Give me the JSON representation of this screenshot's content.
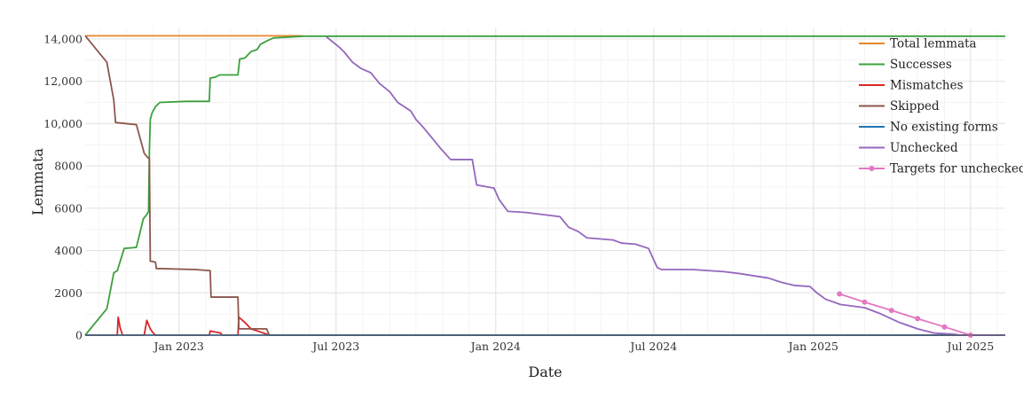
{
  "chart_data": {
    "type": "line",
    "title": "",
    "xlabel": "Date",
    "ylabel": "Lemmata",
    "x_axis": {
      "type": "date",
      "range": [
        "2022-09-15",
        "2025-08-10"
      ],
      "ticks": [
        {
          "date": "2023-01-01",
          "label": "Jan 2023"
        },
        {
          "date": "2023-07-01",
          "label": "Jul 2023"
        },
        {
          "date": "2024-01-01",
          "label": "Jan 2024"
        },
        {
          "date": "2024-07-01",
          "label": "Jul 2024"
        },
        {
          "date": "2025-01-01",
          "label": "Jan 2025"
        },
        {
          "date": "2025-07-01",
          "label": "Jul 2025"
        }
      ]
    },
    "y_axis": {
      "range": [
        0,
        14500
      ],
      "ticks": [
        {
          "value": 0,
          "label": "0"
        },
        {
          "value": 2000,
          "label": "2000"
        },
        {
          "value": 4000,
          "label": "4000"
        },
        {
          "value": 6000,
          "label": "6000"
        },
        {
          "value": 8000,
          "label": "8000"
        },
        {
          "value": 10000,
          "label": "10,000"
        },
        {
          "value": 12000,
          "label": "12,000"
        },
        {
          "value": 14000,
          "label": "14,000"
        }
      ]
    },
    "grid": true,
    "legend_position": "top-right",
    "series": [
      {
        "name": "Total lemmata",
        "color": "#e8862a",
        "markers": false,
        "points": [
          [
            "2022-09-15",
            14150
          ],
          [
            "2023-05-20",
            14150
          ],
          [
            "2023-05-25",
            14130
          ]
        ]
      },
      {
        "name": "Successes",
        "color": "#3ca03c",
        "markers": false,
        "points": [
          [
            "2022-09-15",
            0
          ],
          [
            "2022-10-10",
            1250
          ],
          [
            "2022-10-18",
            2950
          ],
          [
            "2022-10-22",
            3050
          ],
          [
            "2022-10-30",
            4100
          ],
          [
            "2022-11-13",
            4150
          ],
          [
            "2022-11-21",
            5500
          ],
          [
            "2022-11-25",
            5700
          ],
          [
            "2022-11-27",
            5850
          ],
          [
            "2022-11-28",
            8700
          ],
          [
            "2022-11-29",
            10200
          ],
          [
            "2022-12-01",
            10500
          ],
          [
            "2022-12-05",
            10800
          ],
          [
            "2022-12-10",
            11000
          ],
          [
            "2023-01-10",
            11050
          ],
          [
            "2023-02-05",
            11050
          ],
          [
            "2023-02-06",
            12150
          ],
          [
            "2023-02-12",
            12200
          ],
          [
            "2023-02-17",
            12300
          ],
          [
            "2023-03-10",
            12300
          ],
          [
            "2023-03-12",
            13050
          ],
          [
            "2023-03-18",
            13100
          ],
          [
            "2023-03-25",
            13400
          ],
          [
            "2023-04-01",
            13500
          ],
          [
            "2023-04-05",
            13750
          ],
          [
            "2023-04-12",
            13900
          ],
          [
            "2023-04-20",
            14050
          ],
          [
            "2023-05-25",
            14130
          ],
          [
            "2025-07-01",
            14130
          ],
          [
            "2025-08-10",
            14130
          ]
        ]
      },
      {
        "name": "Mismatches",
        "color": "#d62728",
        "markers": false,
        "points": [
          [
            "2022-09-15",
            0
          ],
          [
            "2022-10-22",
            0
          ],
          [
            "2022-10-23",
            850
          ],
          [
            "2022-10-25",
            400
          ],
          [
            "2022-10-28",
            0
          ],
          [
            "2022-11-22",
            0
          ],
          [
            "2022-11-25",
            700
          ],
          [
            "2022-11-29",
            300
          ],
          [
            "2022-12-02",
            120
          ],
          [
            "2022-12-05",
            0
          ],
          [
            "2023-02-05",
            0
          ],
          [
            "2023-02-06",
            200
          ],
          [
            "2023-02-18",
            100
          ],
          [
            "2023-02-20",
            0
          ],
          [
            "2023-03-10",
            0
          ],
          [
            "2023-03-11",
            850
          ],
          [
            "2023-03-18",
            600
          ],
          [
            "2023-03-25",
            300
          ],
          [
            "2023-04-05",
            150
          ],
          [
            "2023-04-15",
            0
          ],
          [
            "2025-08-10",
            0
          ]
        ]
      },
      {
        "name": "Skipped",
        "color": "#8c564b",
        "markers": false,
        "points": [
          [
            "2022-09-15",
            14150
          ],
          [
            "2022-10-10",
            12900
          ],
          [
            "2022-10-18",
            11100
          ],
          [
            "2022-10-20",
            10050
          ],
          [
            "2022-11-13",
            9950
          ],
          [
            "2022-11-22",
            8600
          ],
          [
            "2022-11-26",
            8400
          ],
          [
            "2022-11-28",
            8350
          ],
          [
            "2022-11-29",
            3500
          ],
          [
            "2022-12-05",
            3450
          ],
          [
            "2022-12-06",
            3150
          ],
          [
            "2023-01-20",
            3100
          ],
          [
            "2023-02-06",
            3050
          ],
          [
            "2023-02-07",
            1800
          ],
          [
            "2023-03-10",
            1800
          ],
          [
            "2023-03-11",
            300
          ],
          [
            "2023-04-12",
            300
          ],
          [
            "2023-04-15",
            0
          ],
          [
            "2025-08-10",
            0
          ]
        ]
      },
      {
        "name": "No existing forms",
        "color": "#1f77b4",
        "markers": false,
        "points": [
          [
            "2022-09-15",
            0
          ],
          [
            "2025-08-10",
            0
          ]
        ]
      },
      {
        "name": "Unchecked",
        "color": "#9467bd",
        "markers": false,
        "points": [
          [
            "2023-06-20",
            14100
          ],
          [
            "2023-07-05",
            13600
          ],
          [
            "2023-07-10",
            13400
          ],
          [
            "2023-07-20",
            12900
          ],
          [
            "2023-07-30",
            12600
          ],
          [
            "2023-08-10",
            12400
          ],
          [
            "2023-08-20",
            11900
          ],
          [
            "2023-09-01",
            11500
          ],
          [
            "2023-09-10",
            11000
          ],
          [
            "2023-09-25",
            10600
          ],
          [
            "2023-10-01",
            10200
          ],
          [
            "2023-10-10",
            9800
          ],
          [
            "2023-10-20",
            9300
          ],
          [
            "2023-10-30",
            8800
          ],
          [
            "2023-11-10",
            8300
          ],
          [
            "2023-12-05",
            8300
          ],
          [
            "2023-12-10",
            7100
          ],
          [
            "2023-12-30",
            6950
          ],
          [
            "2024-01-05",
            6400
          ],
          [
            "2024-01-15",
            5850
          ],
          [
            "2024-02-05",
            5800
          ],
          [
            "2024-03-15",
            5600
          ],
          [
            "2024-03-25",
            5100
          ],
          [
            "2024-04-05",
            4900
          ],
          [
            "2024-04-15",
            4600
          ],
          [
            "2024-05-15",
            4500
          ],
          [
            "2024-05-25",
            4350
          ],
          [
            "2024-06-10",
            4300
          ],
          [
            "2024-06-25",
            4100
          ],
          [
            "2024-07-05",
            3200
          ],
          [
            "2024-07-10",
            3100
          ],
          [
            "2024-08-15",
            3100
          ],
          [
            "2024-09-20",
            3000
          ],
          [
            "2024-10-10",
            2900
          ],
          [
            "2024-10-25",
            2800
          ],
          [
            "2024-11-10",
            2700
          ],
          [
            "2024-11-25",
            2500
          ],
          [
            "2024-12-10",
            2350
          ],
          [
            "2024-12-28",
            2300
          ],
          [
            "2025-01-05",
            2000
          ],
          [
            "2025-01-15",
            1700
          ],
          [
            "2025-02-01",
            1450
          ],
          [
            "2025-03-01",
            1300
          ],
          [
            "2025-03-20",
            1000
          ],
          [
            "2025-04-10",
            600
          ],
          [
            "2025-05-01",
            300
          ],
          [
            "2025-05-20",
            100
          ],
          [
            "2025-06-10",
            50
          ],
          [
            "2025-06-20",
            0
          ],
          [
            "2025-08-10",
            0
          ]
        ]
      },
      {
        "name": "Targets for unchecked",
        "color": "#e377c2",
        "markers": true,
        "points": [
          [
            "2025-01-31",
            1950
          ],
          [
            "2025-03-01",
            1560
          ],
          [
            "2025-04-01",
            1170
          ],
          [
            "2025-05-01",
            780
          ],
          [
            "2025-06-01",
            390
          ],
          [
            "2025-07-01",
            0
          ]
        ]
      }
    ]
  }
}
